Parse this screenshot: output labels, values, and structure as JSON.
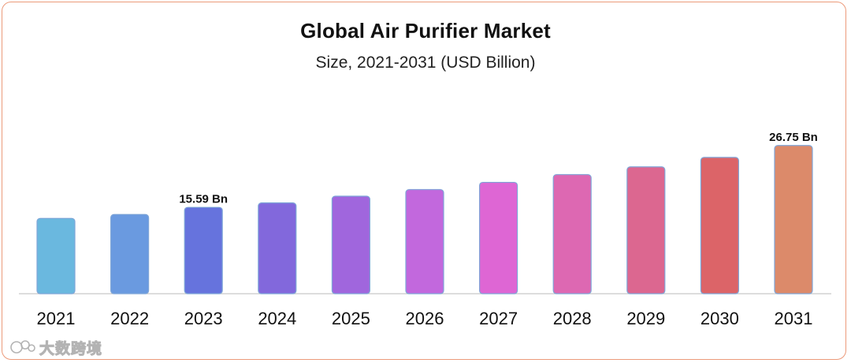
{
  "title": "Global Air Purifier Market",
  "subtitle": "Size, 2021-2031 (USD Billion)",
  "watermark": {
    "text": "大数跨境"
  },
  "chart_data": {
    "type": "bar",
    "title": "Global Air Purifier Market",
    "subtitle": "Size, 2021-2031 (USD Billion)",
    "categories": [
      "2021",
      "2022",
      "2023",
      "2024",
      "2025",
      "2026",
      "2027",
      "2028",
      "2029",
      "2030",
      "2031"
    ],
    "values": [
      13.6,
      14.3,
      15.59,
      16.4,
      17.6,
      18.8,
      20.1,
      21.5,
      22.9,
      24.6,
      26.75
    ],
    "ylim": [
      0,
      27.0
    ],
    "grid": false,
    "annotations": [
      {
        "category": "2023",
        "text": "15.59 Bn"
      },
      {
        "category": "2031",
        "text": "26.75 Bn"
      }
    ],
    "colors": [
      "#6ab8df",
      "#6a9ae0",
      "#6673dd",
      "#8268dc",
      "#a066dd",
      "#c268dd",
      "#de66d4",
      "#dd68b2",
      "#dc6790",
      "#dc6468",
      "#dc8a6a"
    ]
  }
}
